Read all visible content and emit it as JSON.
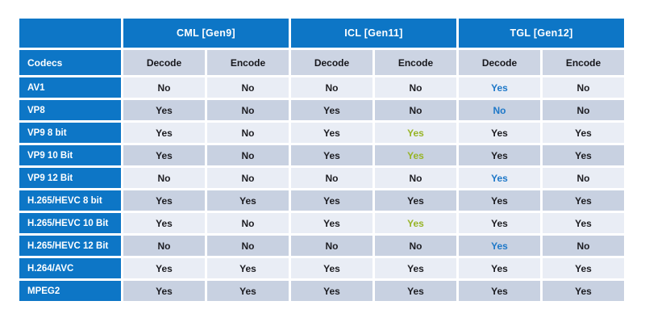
{
  "colors": {
    "header_blue": "#0d76c6",
    "subheader_bg": "#ccd4e3",
    "row_light": "#e9edf5",
    "row_dark": "#c8d1e1",
    "accent_blue": "#1e78c8",
    "accent_green": "#97b426",
    "text_dark": "#1d1d22"
  },
  "chart_data": {
    "type": "table",
    "row_header_title": "Codecs",
    "column_groups": [
      {
        "label": "CML [Gen9]",
        "sub": [
          "Decode",
          "Encode"
        ]
      },
      {
        "label": "ICL [Gen11]",
        "sub": [
          "Decode",
          "Encode"
        ]
      },
      {
        "label": "TGL [Gen12]",
        "sub": [
          "Decode",
          "Encode"
        ]
      }
    ],
    "rows": [
      {
        "codec": "AV1",
        "values": [
          "No",
          "No",
          "No",
          "No",
          "Yes",
          "No"
        ],
        "accents": [
          "",
          "",
          "",
          "",
          "blue",
          ""
        ]
      },
      {
        "codec": "VP8",
        "values": [
          "Yes",
          "No",
          "Yes",
          "No",
          "No",
          "No"
        ],
        "accents": [
          "",
          "",
          "",
          "",
          "blue",
          ""
        ]
      },
      {
        "codec": "VP9 8 bit",
        "values": [
          "Yes",
          "No",
          "Yes",
          "Yes",
          "Yes",
          "Yes"
        ],
        "accents": [
          "",
          "",
          "",
          "green",
          "",
          ""
        ]
      },
      {
        "codec": "VP9 10 Bit",
        "values": [
          "Yes",
          "No",
          "Yes",
          "Yes",
          "Yes",
          "Yes"
        ],
        "accents": [
          "",
          "",
          "",
          "green",
          "",
          ""
        ]
      },
      {
        "codec": "VP9 12 Bit",
        "values": [
          "No",
          "No",
          "No",
          "No",
          "Yes",
          "No"
        ],
        "accents": [
          "",
          "",
          "",
          "",
          "blue",
          ""
        ]
      },
      {
        "codec": "H.265/HEVC 8 bit",
        "values": [
          "Yes",
          "Yes",
          "Yes",
          "Yes",
          "Yes",
          "Yes"
        ],
        "accents": [
          "",
          "",
          "",
          "",
          "",
          ""
        ]
      },
      {
        "codec": "H.265/HEVC 10 Bit",
        "values": [
          "Yes",
          "No",
          "Yes",
          "Yes",
          "Yes",
          "Yes"
        ],
        "accents": [
          "",
          "",
          "",
          "green",
          "",
          ""
        ]
      },
      {
        "codec": "H.265/HEVC 12 Bit",
        "values": [
          "No",
          "No",
          "No",
          "No",
          "Yes",
          "No"
        ],
        "accents": [
          "",
          "",
          "",
          "",
          "blue",
          ""
        ]
      },
      {
        "codec": "H.264/AVC",
        "values": [
          "Yes",
          "Yes",
          "Yes",
          "Yes",
          "Yes",
          "Yes"
        ],
        "accents": [
          "",
          "",
          "",
          "",
          "",
          ""
        ]
      },
      {
        "codec": "MPEG2",
        "values": [
          "Yes",
          "Yes",
          "Yes",
          "Yes",
          "Yes",
          "Yes"
        ],
        "accents": [
          "",
          "",
          "",
          "",
          "",
          ""
        ]
      }
    ]
  }
}
